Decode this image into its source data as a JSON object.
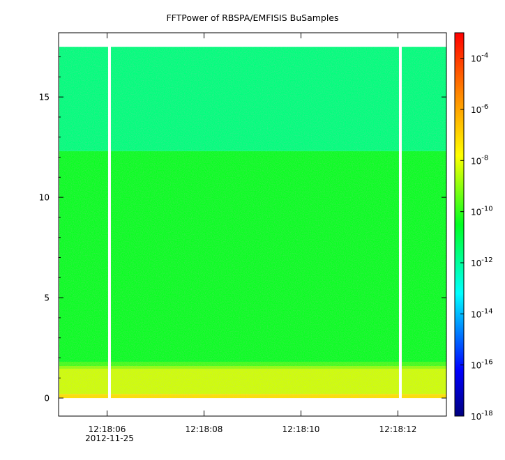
{
  "chart_data": {
    "type": "heatmap",
    "title": "FFTPower of RBSPA/EMFISIS  BuSamples",
    "xlabel": "",
    "ylabel": "",
    "x_ticks": [
      "12:18:06",
      "12:18:08",
      "12:18:10",
      "12:18:12"
    ],
    "x_date_label": "2012-11-25",
    "x_range": [
      "12:18:05.0",
      "12:18:13.0"
    ],
    "y_ticks": [
      "0",
      "5",
      "10",
      "15"
    ],
    "ylim": [
      -0.9,
      18.2
    ],
    "data_extent": {
      "y": [
        0,
        17.5
      ]
    },
    "gaps": [
      "12:18:06.05",
      "12:18:12.05"
    ],
    "z_scale": "log",
    "zlim": [
      1e-18,
      0.001
    ],
    "colorbar": {
      "ticks": [
        {
          "base": "10",
          "exp": "-4",
          "value": 0.0001
        },
        {
          "base": "10",
          "exp": "-6",
          "value": 1e-06
        },
        {
          "base": "10",
          "exp": "-8",
          "value": 1e-08
        },
        {
          "base": "10",
          "exp": "-10",
          "value": 1e-10
        },
        {
          "base": "10",
          "exp": "-12",
          "value": 1e-12
        },
        {
          "base": "10",
          "exp": "-14",
          "value": 1e-14
        },
        {
          "base": "10",
          "exp": "-16",
          "value": 1e-16
        },
        {
          "base": "10",
          "exp": "-18",
          "value": 1e-18
        }
      ],
      "colormap": "rainbow (blue → cyan → green → yellow → red)"
    },
    "bands": [
      {
        "y_range": [
          12.3,
          17.5
        ],
        "log10_power": -11.6
      },
      {
        "y_range": [
          1.6,
          12.3
        ],
        "log10_power": -10.4
      },
      {
        "y_range": [
          0.2,
          1.6
        ],
        "log10_power": -8.3
      },
      {
        "y_range": [
          0,
          0.2
        ],
        "log10_power": -7.2
      }
    ]
  }
}
